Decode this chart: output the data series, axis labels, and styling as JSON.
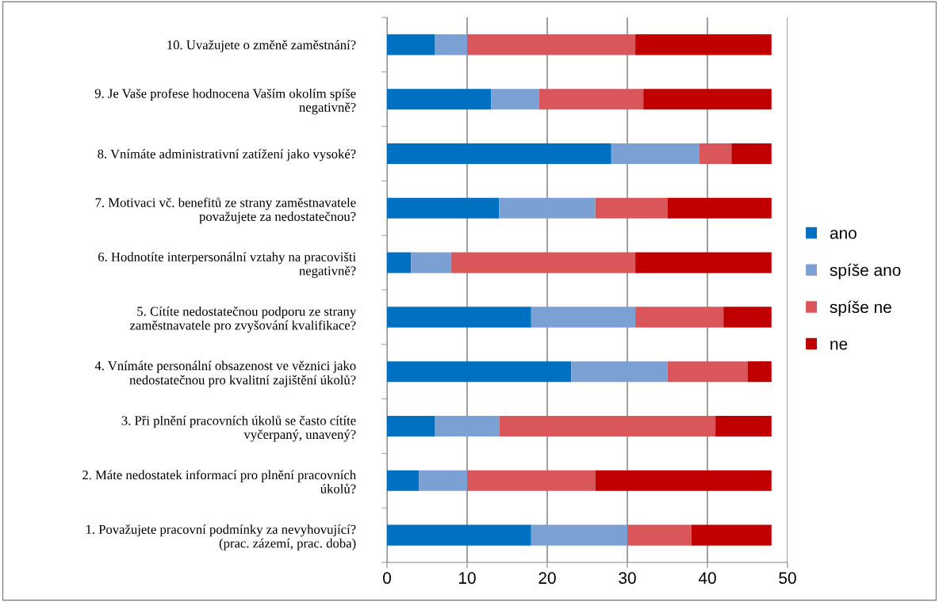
{
  "chart_data": {
    "type": "bar",
    "orientation": "horizontal",
    "stacked": true,
    "categories": [
      "10. Uvažujete o změně zaměstnání?",
      "9. Je Vaše profese hodnocena Vaším okolím spíše\nnegativně?",
      "8. Vnímáte administrativní zatížení jako vysoké?",
      "7. Motivaci vč. benefitů ze strany zaměstnavatele\npovažujete za nedostatečnou?",
      "6. Hodnotíte interpersonální vztahy na pracovišti\nnegativně?",
      "5. Cítíte nedostatečnou podporu ze strany\nzaměstnavatele pro zvyšování kvalifikace?",
      "4. Vnímáte personální obsazenost ve věznici jako\nnedostatečnou pro kvalitní zajištění úkolů?",
      "3. Při plnění pracovních úkolů se často cítíte\nvyčerpaný, unavený?",
      "2. Máte nedostatek informací pro plnění pracovních\núkolů?",
      "1. Považujete pracovní podmínky za nevyhovující?\n(prac. zázemí, prac. doba)"
    ],
    "series": [
      {
        "name": "ano",
        "color": "#0070c0",
        "values": [
          6,
          13,
          28,
          14,
          3,
          18,
          23,
          6,
          4,
          18
        ]
      },
      {
        "name": "spíše ano",
        "color": "#7ba0d4",
        "values": [
          4,
          6,
          11,
          12,
          5,
          13,
          12,
          8,
          6,
          12
        ]
      },
      {
        "name": "spíše ne",
        "color": "#d9575b",
        "values": [
          21,
          13,
          4,
          9,
          23,
          11,
          10,
          27,
          16,
          8
        ]
      },
      {
        "name": "ne",
        "color": "#c00000",
        "values": [
          17,
          16,
          5,
          13,
          17,
          6,
          3,
          7,
          22,
          10
        ]
      }
    ],
    "xlim": [
      0,
      50
    ],
    "xticks": [
      0,
      10,
      20,
      30,
      40,
      50
    ],
    "grid": "x",
    "legend": "right"
  }
}
